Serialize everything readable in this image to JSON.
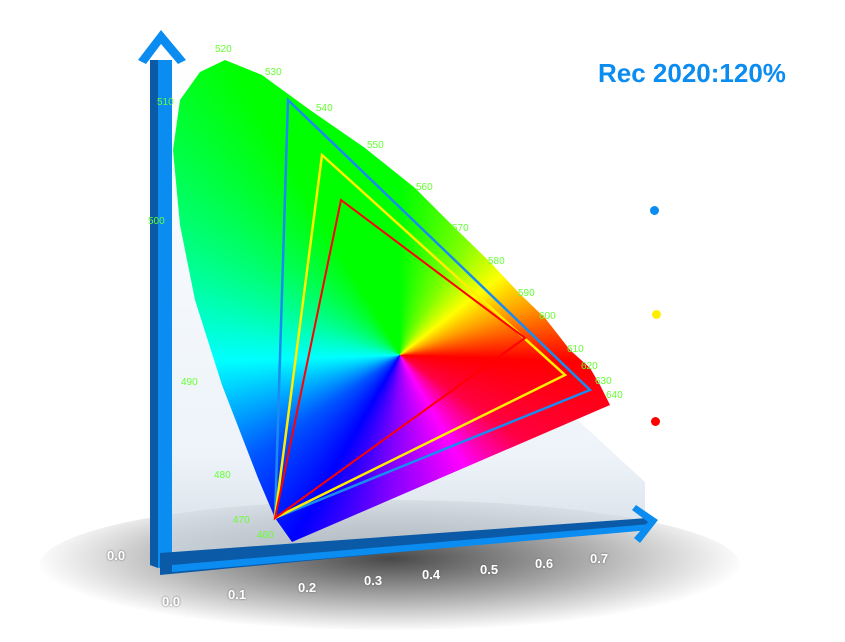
{
  "title": "Rec 2020:120%",
  "wavelength_labels": [
    "460",
    "470",
    "480",
    "490",
    "500",
    "510",
    "520",
    "530",
    "540",
    "550",
    "560",
    "570",
    "580",
    "590",
    "600",
    "610",
    "620",
    "630",
    "640"
  ],
  "x_ticks": [
    "0.0",
    "0.1",
    "0.2",
    "0.3",
    "0.4",
    "0.5",
    "0.6",
    "0.7"
  ],
  "y_tick_origin": "0.0",
  "legend_colors": [
    "#0a8cf0",
    "#ffee00",
    "#ff0000"
  ],
  "axis_color": "#0a8cf0"
}
